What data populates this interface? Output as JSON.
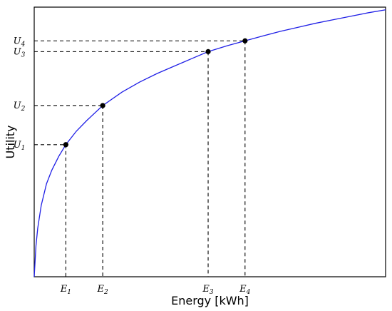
{
  "chart_data": {
    "type": "line",
    "xlabel": "Energy [kWh]",
    "ylabel": "Utility",
    "grid": false,
    "x_ticks": [
      {
        "label": "E",
        "sub": "1"
      },
      {
        "label": "E",
        "sub": "2"
      },
      {
        "label": "E",
        "sub": "3"
      },
      {
        "label": "E",
        "sub": "4"
      }
    ],
    "y_ticks": [
      {
        "label": "U",
        "sub": "1"
      },
      {
        "label": "U",
        "sub": "2"
      },
      {
        "label": "U",
        "sub": "3"
      },
      {
        "label": "U",
        "sub": "4"
      }
    ],
    "points": [
      {
        "x": 0.09,
        "y": 0.49
      },
      {
        "x": 0.195,
        "y": 0.635
      },
      {
        "x": 0.495,
        "y": 0.835
      },
      {
        "x": 0.6,
        "y": 0.875
      }
    ],
    "curve": {
      "color": "#1f1fe6",
      "x": [
        0,
        0.005,
        0.01,
        0.02,
        0.035,
        0.05,
        0.07,
        0.09,
        0.12,
        0.15,
        0.195,
        0.25,
        0.3,
        0.35,
        0.4,
        0.45,
        0.495,
        0.55,
        0.6,
        0.65,
        0.7,
        0.75,
        0.8,
        0.85,
        0.9,
        0.95,
        1.0
      ],
      "y": [
        0,
        0.115,
        0.18,
        0.265,
        0.345,
        0.395,
        0.447,
        0.49,
        0.54,
        0.58,
        0.635,
        0.685,
        0.722,
        0.754,
        0.782,
        0.81,
        0.835,
        0.857,
        0.875,
        0.893,
        0.91,
        0.925,
        0.94,
        0.953,
        0.966,
        0.979,
        0.99
      ]
    },
    "xlim": [
      0,
      1
    ],
    "ylim": [
      0,
      1
    ]
  }
}
